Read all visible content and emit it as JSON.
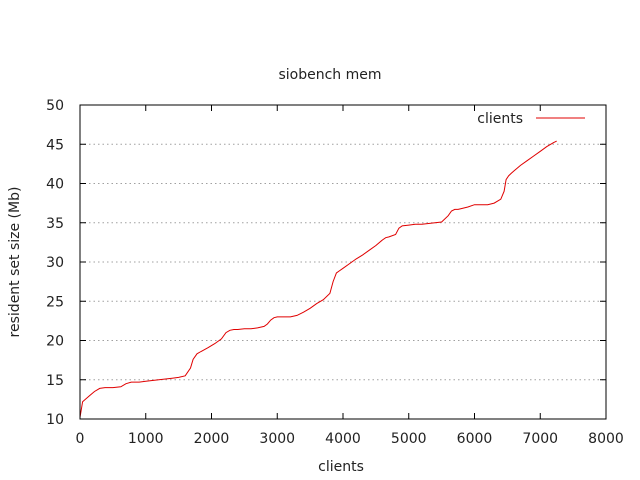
{
  "chart_data": {
    "type": "line",
    "title": "siobench mem",
    "xlabel": "clients",
    "ylabel": "resident set size (Mb)",
    "xlim": [
      0,
      8000
    ],
    "ylim": [
      10,
      50
    ],
    "xticks": [
      0,
      1000,
      2000,
      3000,
      4000,
      5000,
      6000,
      7000,
      8000
    ],
    "yticks": [
      10,
      15,
      20,
      25,
      30,
      35,
      40,
      45,
      50
    ],
    "xtick_labels": [
      "0",
      "1000",
      "2000",
      "3000",
      "4000",
      "5000",
      "6000",
      "7000",
      "8000"
    ],
    "ytick_labels": [
      "10",
      "15",
      "20",
      "25",
      "30",
      "35",
      "40",
      "45",
      "50"
    ],
    "grid": "horizontal dotted",
    "legend": "top-right",
    "series": [
      {
        "name": "clients",
        "color": "#e00000",
        "x": [
          0,
          40,
          80,
          150,
          220,
          300,
          380,
          500,
          620,
          700,
          780,
          900,
          1000,
          1100,
          1200,
          1300,
          1400,
          1500,
          1600,
          1680,
          1720,
          1780,
          1840,
          1950,
          2050,
          2150,
          2220,
          2280,
          2340,
          2400,
          2500,
          2600,
          2700,
          2800,
          2850,
          2900,
          2950,
          3000,
          3100,
          3200,
          3300,
          3400,
          3500,
          3600,
          3700,
          3800,
          3850,
          3900,
          3950,
          4000,
          4100,
          4200,
          4300,
          4400,
          4500,
          4600,
          4650,
          4700,
          4800,
          4850,
          4900,
          5000,
          5100,
          5200,
          5300,
          5400,
          5500,
          5600,
          5650,
          5700,
          5750,
          5800,
          5900,
          6000,
          6100,
          6200,
          6300,
          6400,
          6450,
          6480,
          6520,
          6560,
          6600,
          6700,
          6800,
          6900,
          7000,
          7100,
          7200,
          7250
        ],
        "y": [
          10.2,
          12.2,
          12.5,
          13,
          13.5,
          13.9,
          14,
          14,
          14.1,
          14.5,
          14.7,
          14.7,
          14.8,
          14.9,
          15,
          15.1,
          15.2,
          15.3,
          15.5,
          16.5,
          17.6,
          18.3,
          18.6,
          19.1,
          19.6,
          20.2,
          21,
          21.3,
          21.4,
          21.4,
          21.5,
          21.5,
          21.6,
          21.8,
          22.1,
          22.6,
          22.9,
          23,
          23,
          23,
          23.2,
          23.6,
          24.1,
          24.7,
          25.2,
          26,
          27.5,
          28.6,
          28.9,
          29.2,
          29.8,
          30.4,
          30.9,
          31.5,
          32.1,
          32.8,
          33.1,
          33.2,
          33.5,
          34.3,
          34.6,
          34.7,
          34.8,
          34.8,
          34.9,
          35,
          35.1,
          35.9,
          36.5,
          36.7,
          36.7,
          36.8,
          37,
          37.3,
          37.3,
          37.3,
          37.5,
          38,
          39,
          40.5,
          41,
          41.3,
          41.6,
          42.3,
          42.9,
          43.5,
          44.1,
          44.7,
          45.2,
          45.4
        ]
      }
    ]
  }
}
